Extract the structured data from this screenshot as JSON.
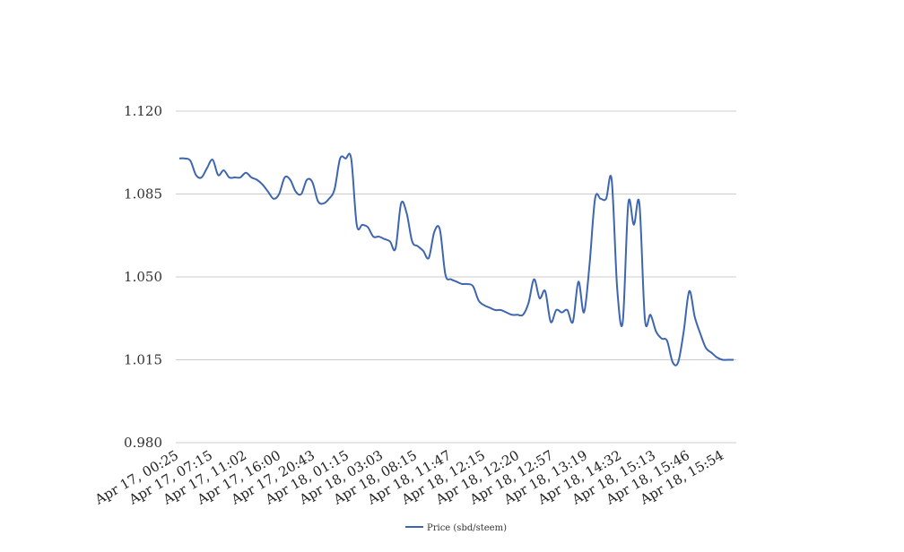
{
  "chart_data": {
    "type": "line",
    "title": "",
    "xlabel": "",
    "ylabel": "",
    "ylim": [
      0.98,
      1.12
    ],
    "yticks": [
      "0.980",
      "1.015",
      "1.050",
      "1.085",
      "1.120"
    ],
    "grid": true,
    "legend_position": "bottom-center",
    "x_tick_labels": [
      "Apr 17, 00:25",
      "Apr 17, 07:15",
      "Apr 17, 11:02",
      "Apr 17, 16:00",
      "Apr 17, 20:43",
      "Apr 18, 01:15",
      "Apr 18, 03:03",
      "Apr 18, 08:15",
      "Apr 18, 11:47",
      "Apr 18, 12:15",
      "Apr 18, 12:20",
      "Apr 18, 12:57",
      "Apr 18, 13:19",
      "Apr 18, 14:32",
      "Apr 18, 15:13",
      "Apr 18, 15:46",
      "Apr 18, 15:54"
    ],
    "series": [
      {
        "name": "Price (sbd/steem)",
        "color": "#3e66b0",
        "values": [
          1.1,
          1.1,
          1.099,
          1.093,
          1.092,
          1.096,
          1.0995,
          1.093,
          1.095,
          1.092,
          1.092,
          1.092,
          1.094,
          1.092,
          1.091,
          1.089,
          1.086,
          1.083,
          1.085,
          1.092,
          1.091,
          1.086,
          1.085,
          1.091,
          1.09,
          1.082,
          1.081,
          1.083,
          1.087,
          1.1,
          1.1,
          1.1,
          1.072,
          1.072,
          1.071,
          1.067,
          1.067,
          1.066,
          1.065,
          1.062,
          1.081,
          1.077,
          1.065,
          1.063,
          1.061,
          1.058,
          1.069,
          1.07,
          1.051,
          1.049,
          1.048,
          1.047,
          1.047,
          1.046,
          1.04,
          1.038,
          1.037,
          1.036,
          1.036,
          1.035,
          1.034,
          1.034,
          1.034,
          1.039,
          1.049,
          1.041,
          1.044,
          1.031,
          1.036,
          1.035,
          1.036,
          1.031,
          1.048,
          1.035,
          1.055,
          1.083,
          1.083,
          1.083,
          1.091,
          1.045,
          1.031,
          1.081,
          1.072,
          1.081,
          1.032,
          1.034,
          1.027,
          1.024,
          1.023,
          1.014,
          1.014,
          1.027,
          1.044,
          1.033,
          1.026,
          1.02,
          1.018,
          1.016,
          1.015,
          1.015,
          1.015
        ]
      }
    ]
  }
}
